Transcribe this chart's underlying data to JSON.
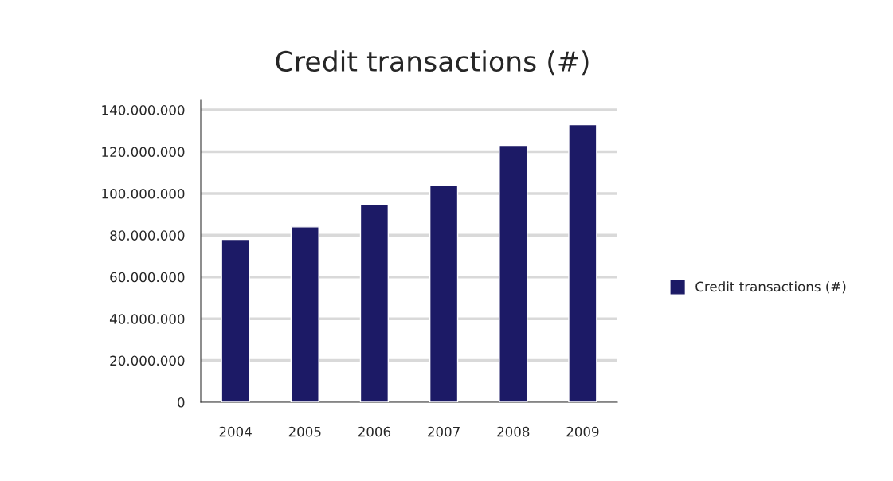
{
  "chart_data": {
    "type": "bar",
    "title": "Credit transactions (#)",
    "categories": [
      "2004",
      "2005",
      "2006",
      "2007",
      "2008",
      "2009"
    ],
    "series": [
      {
        "name": "Credit transactions (#)",
        "color": "#1c1a66",
        "values": [
          78000000,
          84000000,
          94500000,
          104000000,
          123000000,
          133000000
        ]
      }
    ],
    "ylim": [
      0,
      145000000
    ],
    "yticks": [
      {
        "value": 0,
        "label": "0"
      },
      {
        "value": 20000000,
        "label": "20.000.000"
      },
      {
        "value": 40000000,
        "label": "40.000.000"
      },
      {
        "value": 60000000,
        "label": "60.000.000"
      },
      {
        "value": 80000000,
        "label": "80.000.000"
      },
      {
        "value": 100000000,
        "label": "100.000.000"
      },
      {
        "value": 120000000,
        "label": "120.000.000"
      },
      {
        "value": 140000000,
        "label": "140.000.000"
      }
    ],
    "grid": "y",
    "legend": "right"
  }
}
